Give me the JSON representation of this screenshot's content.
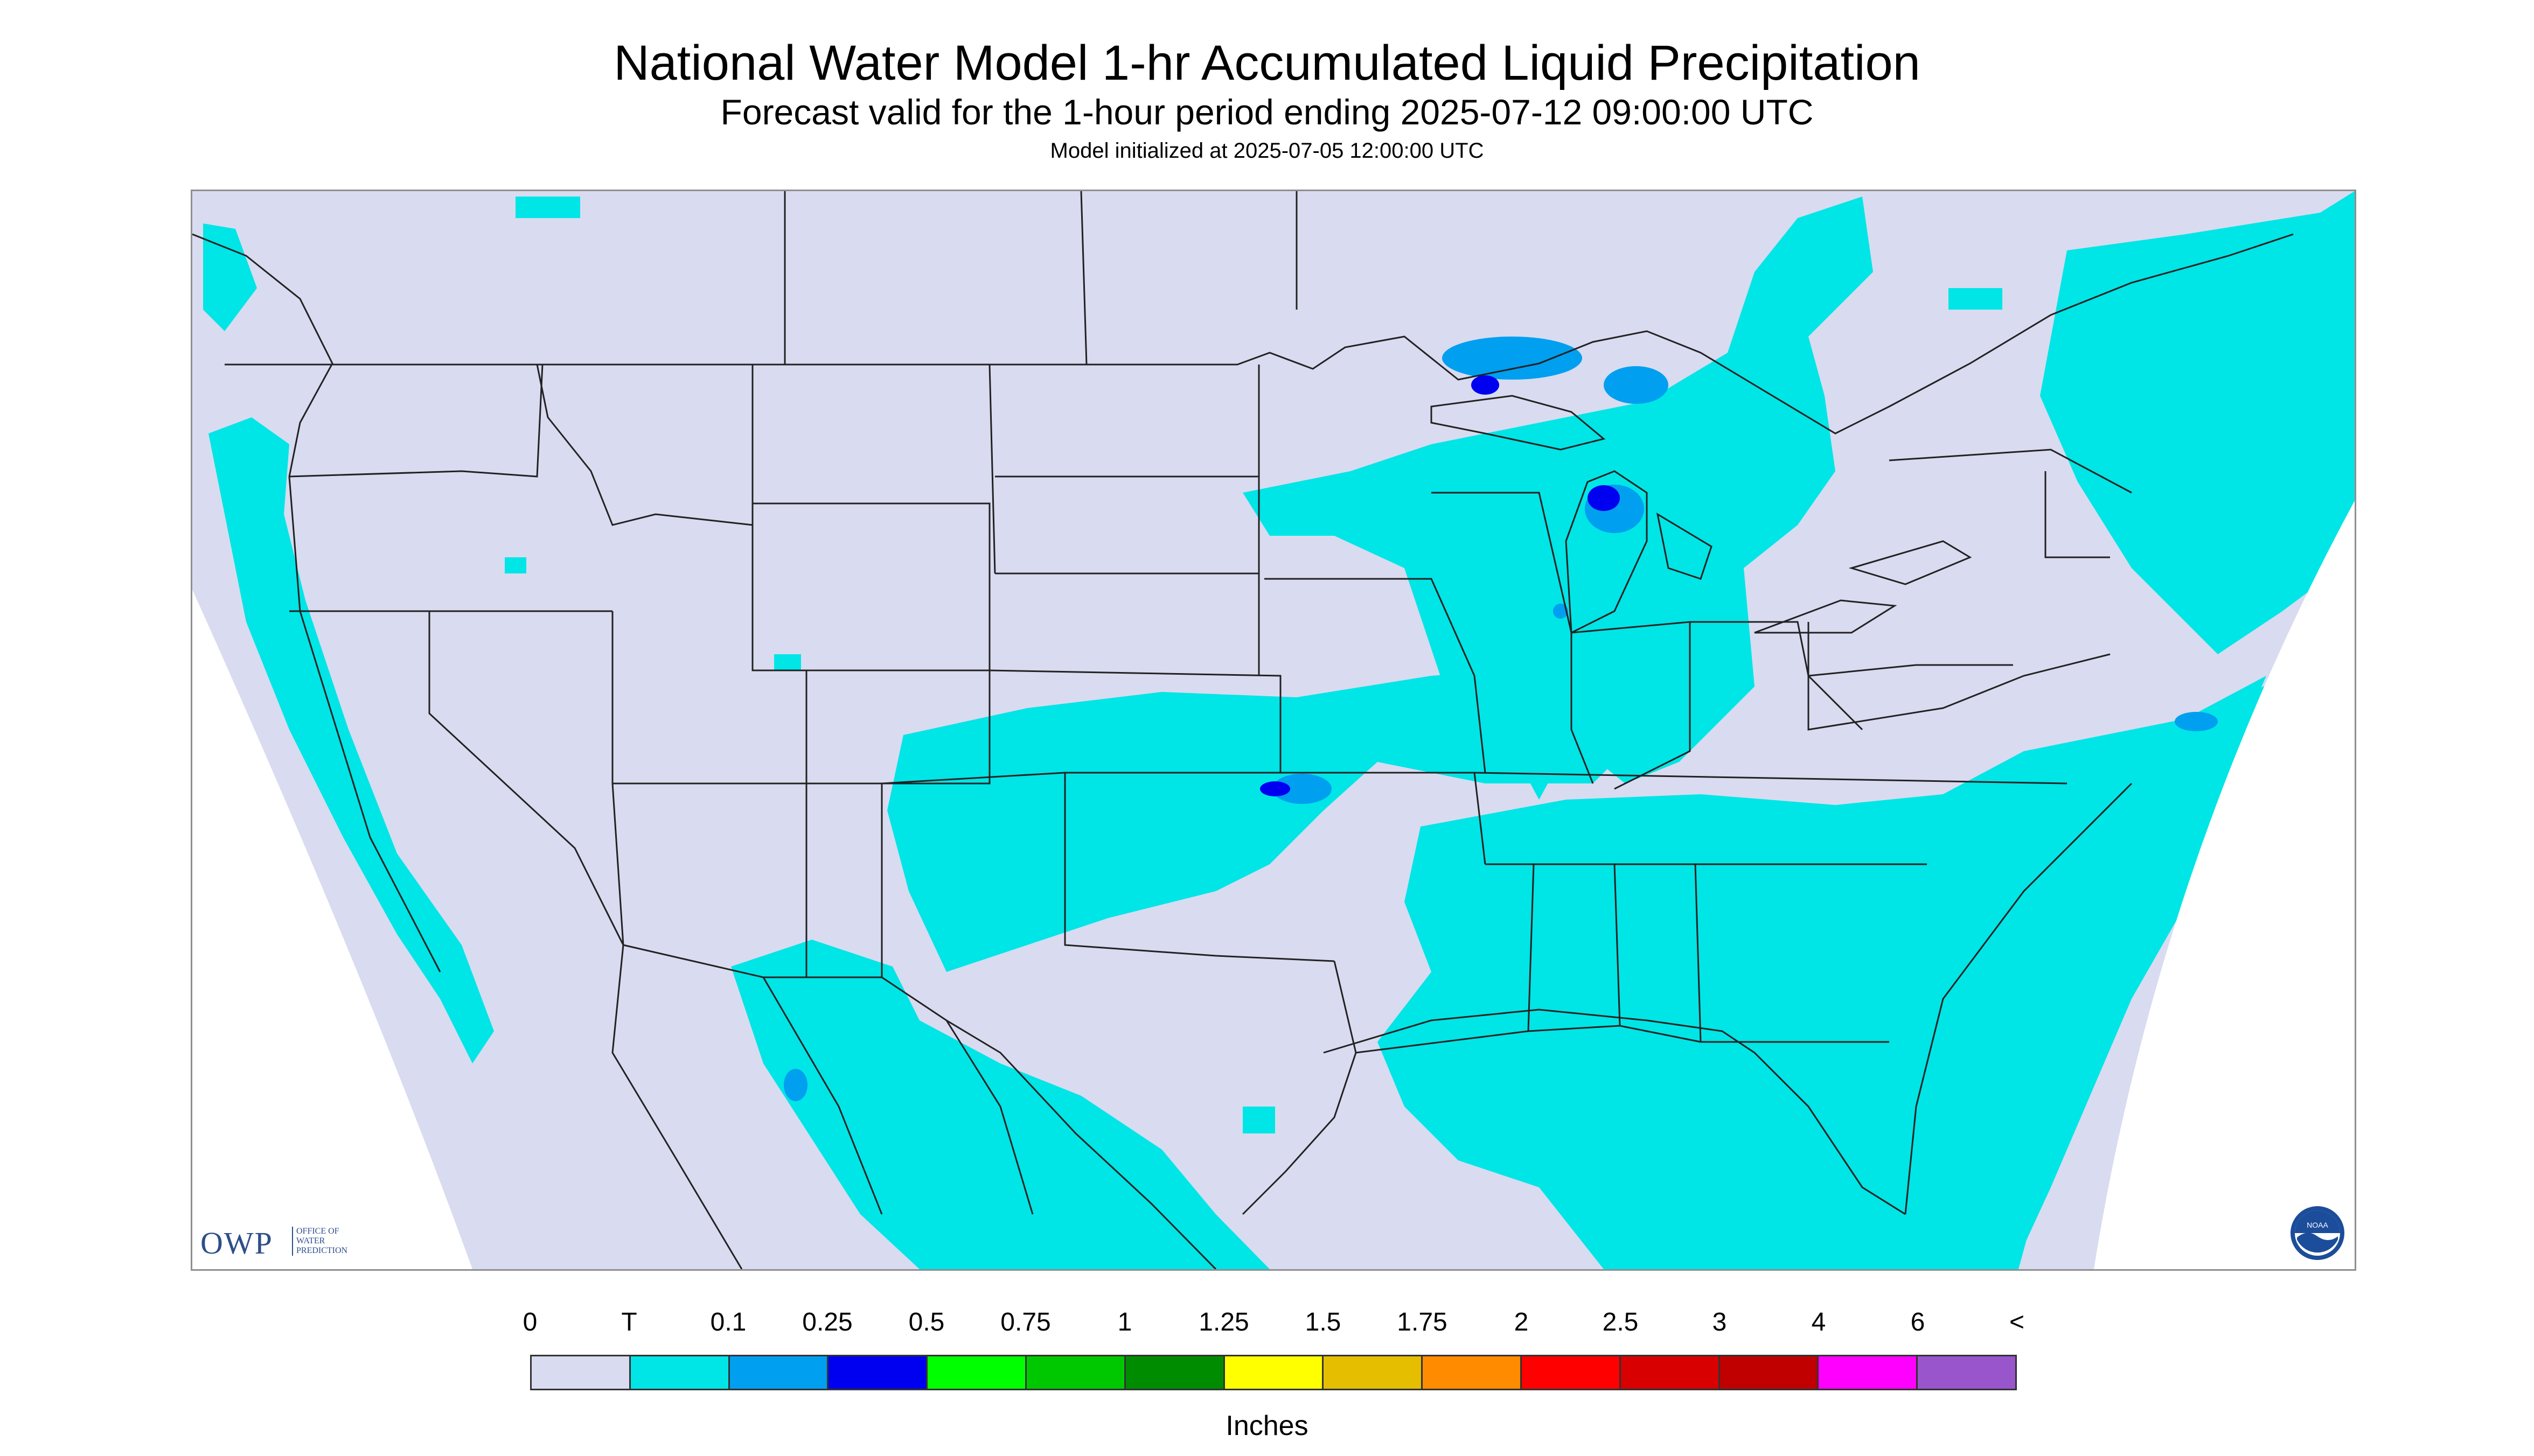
{
  "title": "National Water Model 1-hr Accumulated Liquid Precipitation",
  "subtitle": "Forecast valid for the 1-hour period ending 2025-07-12 09:00:00 UTC",
  "init_line": "Model initialized at 2025-07-05 12:00:00 UTC",
  "logos": {
    "owp": {
      "mark": "OWP",
      "text": "OFFICE OF\nWATER\nPREDICTION"
    },
    "noaa": {
      "text": "NOAA"
    }
  },
  "legend": {
    "unit": "Inches",
    "labels": [
      "0",
      "T",
      "0.1",
      "0.25",
      "0.5",
      "0.75",
      "1",
      "1.25",
      "1.5",
      "1.75",
      "2",
      "2.5",
      "3",
      "4",
      "6",
      "<"
    ],
    "colors": [
      "#d9dbf0",
      "#00e5e6",
      "#009ff0",
      "#0000f0",
      "#00ff00",
      "#00c800",
      "#008c00",
      "#ffff00",
      "#e6be00",
      "#ff8c00",
      "#ff0000",
      "#d80000",
      "#c00000",
      "#ff00ff",
      "#9955cc"
    ]
  },
  "map_colors": {
    "background": "#d9dbf0",
    "trace": "#00e5e6",
    "light": "#009ff0",
    "moderate": "#0000f0",
    "border": "#222222",
    "outside": "#ffffff"
  }
}
